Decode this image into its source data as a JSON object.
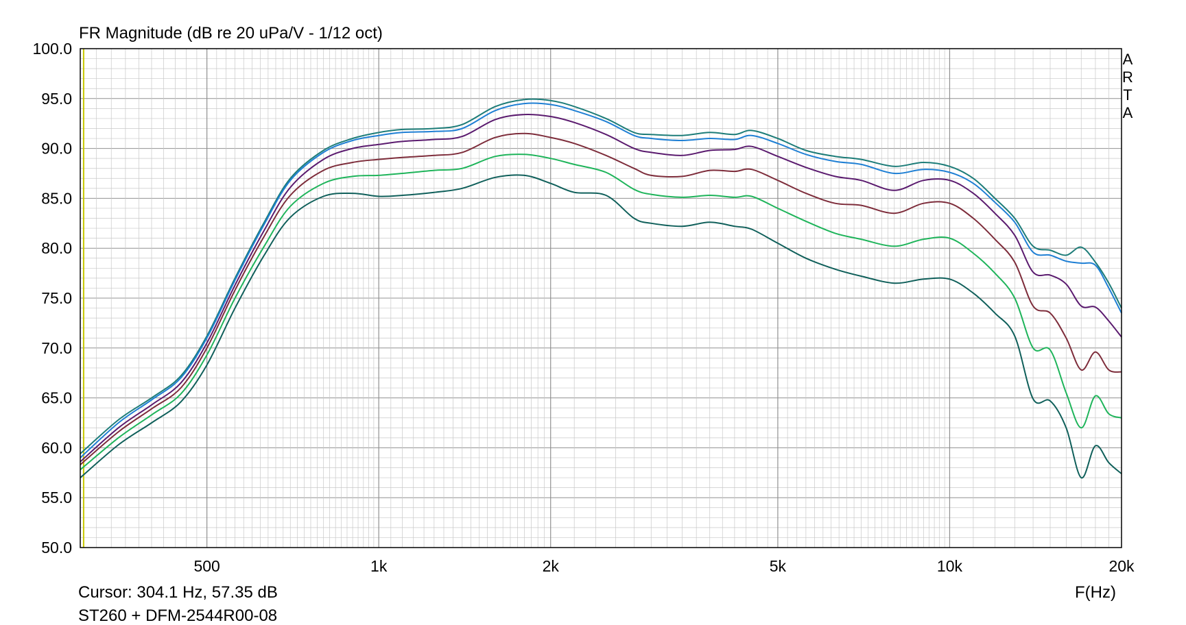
{
  "window": {
    "title": "FR Magnitude (dB re 20 uPa/V - 1/12 oct)"
  },
  "status": {
    "cursor": "Cursor: 304.1 Hz, 57.35 dB",
    "device": "ST260 + DFM-2544R00-08"
  },
  "brand": [
    "A",
    "R",
    "T",
    "A"
  ],
  "colors": {
    "background": "#ffffff",
    "grid_major": "#909090",
    "grid_minor": "#c8c8c8",
    "cursor_line": "#c8c800"
  },
  "chart_data": {
    "type": "line",
    "title": "FR Magnitude (dB re 20 uPa/V - 1/12 oct)",
    "xlabel": "F(Hz)",
    "ylabel": "",
    "xscale": "log",
    "xlim": [
      300,
      20000
    ],
    "ylim": [
      50,
      100
    ],
    "grid": true,
    "cursor_freq": 304.1,
    "x_ticks": [
      {
        "value": 500,
        "label": "500"
      },
      {
        "value": 1000,
        "label": "1k"
      },
      {
        "value": 2000,
        "label": "2k"
      },
      {
        "value": 5000,
        "label": "5k"
      },
      {
        "value": 10000,
        "label": "10k"
      },
      {
        "value": 20000,
        "label": "20k"
      }
    ],
    "y_ticks": [
      {
        "value": 100,
        "label": "100.0"
      },
      {
        "value": 95,
        "label": "95.0"
      },
      {
        "value": 90,
        "label": "90.0"
      },
      {
        "value": 85,
        "label": "85.0"
      },
      {
        "value": 80,
        "label": "80.0"
      },
      {
        "value": 75,
        "label": "75.0"
      },
      {
        "value": 70,
        "label": "70.0"
      },
      {
        "value": 65,
        "label": "65.0"
      },
      {
        "value": 60,
        "label": "60.0"
      },
      {
        "value": 55,
        "label": "55.0"
      },
      {
        "value": 50,
        "label": "50.0"
      }
    ],
    "x": [
      300,
      350,
      400,
      450,
      500,
      560,
      630,
      700,
      800,
      900,
      1000,
      1100,
      1250,
      1400,
      1600,
      1800,
      2000,
      2200,
      2500,
      2800,
      3000,
      3400,
      3800,
      4200,
      4500,
      5000,
      5600,
      6300,
      7000,
      8000,
      9000,
      10000,
      11000,
      12000,
      13000,
      14000,
      15000,
      16000,
      17000,
      18000,
      19000,
      20000
    ],
    "series": [
      {
        "color": "#1c7c78",
        "values": [
          59.4,
          62.8,
          65.0,
          67.2,
          71.2,
          77.0,
          82.6,
          87.0,
          89.8,
          91.0,
          91.6,
          91.9,
          92.0,
          92.4,
          94.2,
          94.9,
          94.8,
          94.2,
          93.0,
          91.6,
          91.4,
          91.3,
          91.6,
          91.4,
          91.8,
          91.0,
          89.8,
          89.2,
          88.9,
          88.2,
          88.6,
          88.2,
          87.0,
          85.0,
          83.0,
          80.2,
          79.8,
          79.3,
          80.1,
          78.6,
          76.5,
          74.0
        ]
      },
      {
        "color": "#1e7fd4",
        "values": [
          59.0,
          62.5,
          64.8,
          67.0,
          71.0,
          76.8,
          82.4,
          86.8,
          89.6,
          90.8,
          91.3,
          91.6,
          91.7,
          92.0,
          93.8,
          94.5,
          94.4,
          93.8,
          92.7,
          91.3,
          91.0,
          90.8,
          91.0,
          90.9,
          91.3,
          90.5,
          89.4,
          88.7,
          88.4,
          87.5,
          87.9,
          87.6,
          86.5,
          84.6,
          82.6,
          79.6,
          79.3,
          78.7,
          78.5,
          78.3,
          76.0,
          73.5
        ]
      },
      {
        "color": "#5a1a6e",
        "values": [
          58.6,
          62.0,
          64.3,
          66.5,
          70.5,
          76.3,
          81.8,
          86.1,
          88.9,
          90.0,
          90.4,
          90.7,
          90.9,
          91.2,
          92.9,
          93.4,
          93.2,
          92.6,
          91.4,
          90.0,
          89.6,
          89.3,
          89.8,
          89.9,
          90.2,
          89.2,
          88.1,
          87.2,
          86.8,
          85.8,
          86.8,
          86.8,
          85.5,
          83.5,
          81.3,
          77.6,
          77.3,
          76.4,
          74.2,
          74.1,
          72.7,
          71.1
        ]
      },
      {
        "color": "#7d2c3a",
        "values": [
          58.3,
          61.6,
          63.9,
          66.0,
          70.0,
          75.8,
          81.2,
          85.3,
          87.8,
          88.6,
          88.9,
          89.1,
          89.3,
          89.6,
          91.1,
          91.5,
          91.1,
          90.5,
          89.3,
          88.0,
          87.3,
          87.2,
          87.8,
          87.7,
          87.9,
          86.8,
          85.5,
          84.5,
          84.3,
          83.5,
          84.5,
          84.5,
          83.0,
          80.9,
          78.6,
          74.2,
          73.5,
          71.0,
          67.8,
          69.6,
          67.8,
          67.6
        ]
      },
      {
        "color": "#1eb45a",
        "values": [
          57.8,
          61.0,
          63.3,
          65.4,
          69.3,
          75.0,
          80.2,
          84.2,
          86.5,
          87.2,
          87.3,
          87.5,
          87.8,
          88.0,
          89.2,
          89.4,
          89.0,
          88.4,
          87.6,
          85.9,
          85.4,
          85.1,
          85.3,
          85.1,
          85.2,
          84.0,
          82.7,
          81.5,
          80.9,
          80.2,
          80.9,
          81.0,
          79.5,
          77.5,
          75.0,
          70.0,
          69.8,
          65.5,
          62.0,
          65.2,
          63.4,
          63.0
        ]
      },
      {
        "color": "#0f5f5a",
        "values": [
          57.0,
          60.3,
          62.5,
          64.6,
          68.3,
          74.0,
          79.3,
          83.1,
          85.2,
          85.5,
          85.2,
          85.3,
          85.6,
          86.0,
          87.1,
          87.3,
          86.5,
          85.6,
          85.3,
          83.0,
          82.5,
          82.2,
          82.6,
          82.2,
          81.9,
          80.5,
          79.0,
          77.9,
          77.2,
          76.5,
          76.9,
          76.9,
          75.5,
          73.5,
          71.2,
          64.9,
          64.7,
          62.0,
          57.0,
          60.2,
          58.5,
          57.4
        ]
      }
    ]
  }
}
